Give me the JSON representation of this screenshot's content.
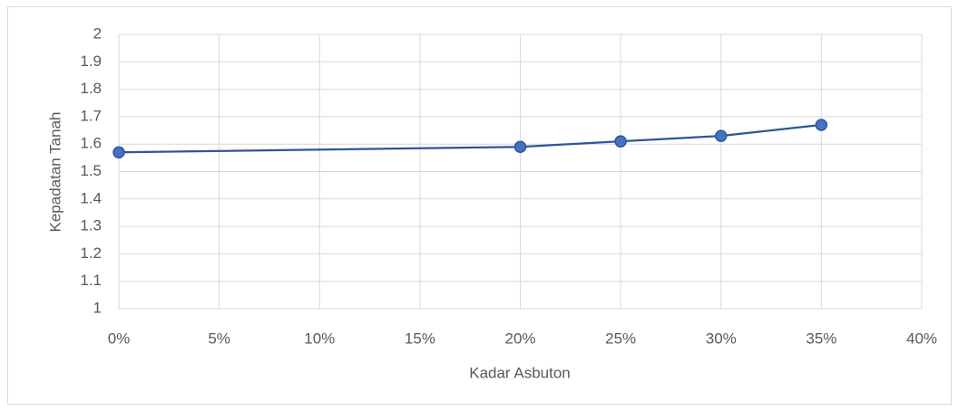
{
  "chart_data": {
    "type": "line",
    "x_label": "Kadar Asbuton",
    "y_label": "Kepadatan Tanah",
    "x": [
      0,
      20,
      25,
      30,
      35
    ],
    "series": [
      {
        "color": "#2f5597",
        "marker_color": "#4472c4",
        "values": [
          1.57,
          1.59,
          1.61,
          1.63,
          1.67
        ]
      }
    ],
    "xlim": [
      0,
      40
    ],
    "xticks": [
      {
        "value": 0,
        "label": "0%"
      },
      {
        "value": 5,
        "label": "5%"
      },
      {
        "value": 10,
        "label": "10%"
      },
      {
        "value": 15,
        "label": "15%"
      },
      {
        "value": 20,
        "label": "20%"
      },
      {
        "value": 25,
        "label": "25%"
      },
      {
        "value": 30,
        "label": "30%"
      },
      {
        "value": 35,
        "label": "35%"
      },
      {
        "value": 40,
        "label": "40%"
      }
    ],
    "ylim": [
      1,
      2
    ],
    "yticks": [
      1,
      1.1,
      1.2,
      1.3,
      1.4,
      1.5,
      1.6,
      1.7,
      1.8,
      1.9,
      2
    ],
    "grid": true
  }
}
